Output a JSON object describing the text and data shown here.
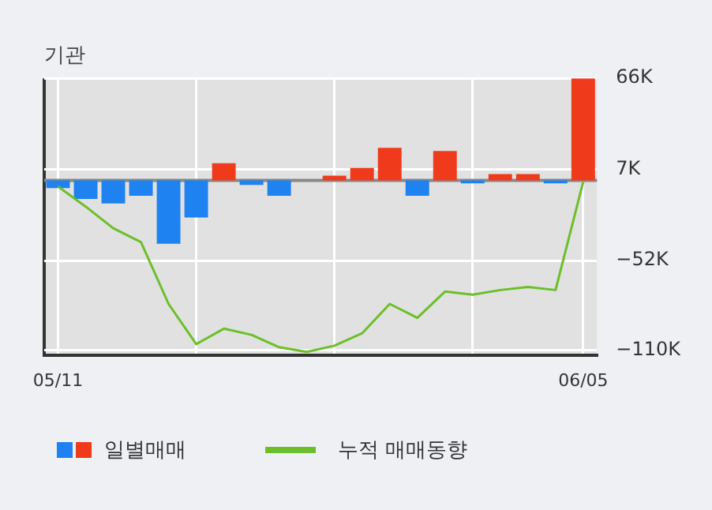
{
  "chart_data": {
    "type": "bar",
    "title": "기관",
    "categories": [
      "05/11",
      null,
      null,
      null,
      null,
      null,
      null,
      null,
      null,
      null,
      null,
      null,
      null,
      null,
      null,
      null,
      null,
      null,
      null,
      "06/05"
    ],
    "series": [
      {
        "name": "일별매매",
        "colors": [
          "#1e82f0",
          "#1e82f0",
          "#1e82f0",
          "#1e82f0",
          "#1e82f0",
          "#1e82f0",
          "#f03a1c",
          "#1e82f0",
          "#1e82f0",
          "#f03a1c",
          "#f03a1c",
          "#f03a1c",
          "#f03a1c",
          "#1e82f0",
          "#f03a1c",
          "#1e82f0",
          "#f03a1c",
          "#f03a1c",
          "#1e82f0",
          "#f03a1c"
        ],
        "values": [
          -5000,
          -12000,
          -15000,
          -10000,
          -41000,
          -24000,
          11000,
          -3000,
          -10000,
          0,
          3000,
          8000,
          21000,
          -10000,
          19000,
          -2000,
          4000,
          4000,
          -2000,
          66000
        ]
      },
      {
        "name": "누적 매매동향",
        "type": "line",
        "color": "#6cbf2a",
        "values": [
          -4000,
          -17000,
          -31000,
          -40000,
          -80000,
          -106000,
          -96000,
          -100000,
          -108000,
          -111000,
          -107000,
          -99000,
          -80000,
          -89000,
          -72000,
          -74000,
          -71000,
          -69000,
          -71000,
          -1000
        ]
      }
    ],
    "ylim": [
      -113000,
      66000
    ],
    "yticks": [
      {
        "value": 66000,
        "label": "66K"
      },
      {
        "value": 7000,
        "label": "7K"
      },
      {
        "value": -52000,
        "label": "−52K"
      },
      {
        "value": -110000,
        "label": "−110K"
      }
    ],
    "ref_lines": [
      {
        "axis": "y",
        "value": 0,
        "color": "#888888"
      }
    ],
    "grid": true,
    "legend": "bottom",
    "marker": "none",
    "line_style": "solid"
  }
}
